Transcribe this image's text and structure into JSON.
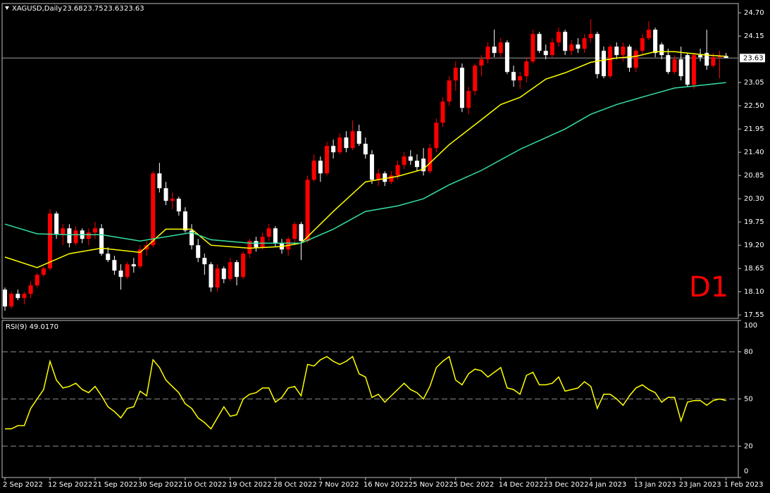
{
  "chart_data": {
    "type": "candlestick",
    "symbol": "XAGUSD,Daily",
    "timeframe_label": "D1",
    "open": [
      18.15,
      17.75,
      18.05,
      17.95,
      18.05,
      18.25,
      18.5,
      18.65,
      19.95,
      19.45,
      19.6,
      19.25,
      19.55,
      19.35,
      19.5,
      19.6,
      19.0,
      18.85,
      18.6,
      18.45,
      18.75,
      18.7,
      19.1,
      19.2,
      20.9,
      20.55,
      20.25,
      20.3,
      20.0,
      19.55,
      19.2,
      18.9,
      18.75,
      18.2,
      18.65,
      18.4,
      18.8,
      18.45,
      19.0,
      19.3,
      19.15,
      19.4,
      19.6,
      19.25,
      19.1,
      19.35,
      19.7,
      19.3,
      20.75,
      21.2,
      20.9,
      21.55,
      21.4,
      21.75,
      21.5,
      21.9,
      21.6,
      21.35,
      20.75,
      20.9,
      20.7,
      20.85,
      21.1,
      21.3,
      21.2,
      21.25,
      20.95,
      21.5,
      22.1,
      22.6,
      23.1,
      23.4,
      22.45,
      22.85,
      23.45,
      23.6,
      23.9,
      23.75,
      24.0,
      23.3,
      23.1,
      23.2,
      23.55,
      24.2,
      23.8,
      23.7,
      24.0,
      24.25,
      23.8,
      23.95,
      23.85,
      24.1,
      24.2,
      23.8,
      23.2,
      23.9,
      23.7,
      23.9,
      23.4,
      23.8,
      24.1,
      24.3,
      23.95,
      23.7,
      23.3,
      23.6,
      23.7,
      23.0,
      23.7,
      23.75,
      23.45,
      23.65,
      23.68
    ],
    "high": [
      18.2,
      18.1,
      18.15,
      18.1,
      18.35,
      18.55,
      18.7,
      20.05,
      20.0,
      19.7,
      19.7,
      19.65,
      19.6,
      19.6,
      19.75,
      19.7,
      19.15,
      18.95,
      18.75,
      18.8,
      18.9,
      19.2,
      19.3,
      20.95,
      21.15,
      20.7,
      20.45,
      20.35,
      20.1,
      19.7,
      19.35,
      19.0,
      18.8,
      18.75,
      18.7,
      18.9,
      18.85,
      19.05,
      19.35,
      19.4,
      19.5,
      19.7,
      19.65,
      19.35,
      19.4,
      19.75,
      19.75,
      20.85,
      21.35,
      21.3,
      21.65,
      21.7,
      21.85,
      21.9,
      22.15,
      22.05,
      21.75,
      21.45,
      21.0,
      20.95,
      20.95,
      21.2,
      21.4,
      21.45,
      21.35,
      21.5,
      21.6,
      22.2,
      22.7,
      23.2,
      23.55,
      23.5,
      22.95,
      23.5,
      23.7,
      24.0,
      24.3,
      24.1,
      24.05,
      23.45,
      23.3,
      23.65,
      24.3,
      24.25,
      23.95,
      24.1,
      24.35,
      24.3,
      24.05,
      24.1,
      24.2,
      24.55,
      24.25,
      23.9,
      23.95,
      24.0,
      24.0,
      23.95,
      23.85,
      24.2,
      24.5,
      24.35,
      24.0,
      23.85,
      23.7,
      23.9,
      23.75,
      23.75,
      23.85,
      24.3,
      23.75,
      23.8,
      23.75
    ],
    "low": [
      17.65,
      17.7,
      17.9,
      17.8,
      17.95,
      18.2,
      18.45,
      18.6,
      19.35,
      19.2,
      19.15,
      19.2,
      19.25,
      19.2,
      19.35,
      18.95,
      18.8,
      18.5,
      18.15,
      18.4,
      18.55,
      18.65,
      18.95,
      19.15,
      20.45,
      20.15,
      20.05,
      19.9,
      19.5,
      19.1,
      18.8,
      18.5,
      18.1,
      18.1,
      18.3,
      18.35,
      18.25,
      18.4,
      18.9,
      19.05,
      19.1,
      19.3,
      19.15,
      19.0,
      18.95,
      19.2,
      18.85,
      19.25,
      20.7,
      20.7,
      20.85,
      21.25,
      21.35,
      21.4,
      21.45,
      21.55,
      21.25,
      20.65,
      20.6,
      20.6,
      20.65,
      20.75,
      21.0,
      21.1,
      20.95,
      20.85,
      20.9,
      21.4,
      22.0,
      22.5,
      22.85,
      22.35,
      22.3,
      22.75,
      23.2,
      23.5,
      23.65,
      23.65,
      23.25,
      22.95,
      22.9,
      23.05,
      23.5,
      23.75,
      23.6,
      23.65,
      23.9,
      23.7,
      23.7,
      23.75,
      23.75,
      24.0,
      23.15,
      23.15,
      23.15,
      23.6,
      23.55,
      23.3,
      23.3,
      23.7,
      24.05,
      23.65,
      23.6,
      23.25,
      23.25,
      23.1,
      22.95,
      22.9,
      23.55,
      23.35,
      23.4,
      23.15,
      23.63
    ],
    "close": [
      17.75,
      18.05,
      17.95,
      18.05,
      18.25,
      18.5,
      18.65,
      19.95,
      19.45,
      19.6,
      19.25,
      19.55,
      19.35,
      19.5,
      19.6,
      19.0,
      18.85,
      18.6,
      18.45,
      18.75,
      18.7,
      19.1,
      19.2,
      20.9,
      20.55,
      20.25,
      20.3,
      20.0,
      19.55,
      19.2,
      18.9,
      18.75,
      18.2,
      18.65,
      18.4,
      18.8,
      18.45,
      19.0,
      19.3,
      19.15,
      19.4,
      19.6,
      19.25,
      19.1,
      19.35,
      19.7,
      19.3,
      20.75,
      21.2,
      20.9,
      21.55,
      21.4,
      21.75,
      21.5,
      21.9,
      21.6,
      21.35,
      20.75,
      20.9,
      20.7,
      20.85,
      21.1,
      21.3,
      21.2,
      21.05,
      20.95,
      21.5,
      22.1,
      22.6,
      23.1,
      23.4,
      22.45,
      22.85,
      23.45,
      23.6,
      23.9,
      23.75,
      24.0,
      23.3,
      23.1,
      23.2,
      23.55,
      24.2,
      23.8,
      23.7,
      24.0,
      24.25,
      23.8,
      23.95,
      23.85,
      24.1,
      24.2,
      23.25,
      23.2,
      23.9,
      23.7,
      23.9,
      23.4,
      23.8,
      24.1,
      24.3,
      23.75,
      23.7,
      23.3,
      23.6,
      23.2,
      23.0,
      23.7,
      23.65,
      23.45,
      23.65,
      23.68,
      23.63
    ],
    "bull_color": "#ff0000",
    "bear_color": "#ffffff",
    "xlim": [
      -0.44,
      113.9
    ],
    "xticks": [
      {
        "value": 0,
        "label": "2 Sep 2022"
      },
      {
        "value": 7,
        "label": "12 Sep 2022"
      },
      {
        "value": 14,
        "label": "21 Sep 2022"
      },
      {
        "value": 21,
        "label": "30 Sep 2022"
      },
      {
        "value": 28,
        "label": "10 Oct 2022"
      },
      {
        "value": 35,
        "label": "19 Oct 2022"
      },
      {
        "value": 42,
        "label": "28 Oct 2022"
      },
      {
        "value": 49,
        "label": "7 Nov 2022"
      },
      {
        "value": 56,
        "label": "16 Nov 2022"
      },
      {
        "value": 63,
        "label": "25 Nov 2022"
      },
      {
        "value": 70,
        "label": "5 Dec 2022"
      },
      {
        "value": 77,
        "label": "14 Dec 2022"
      },
      {
        "value": 84,
        "label": "23 Dec 2022"
      },
      {
        "value": 91,
        "label": "4 Jan 2023"
      },
      {
        "value": 98,
        "label": "13 Jan 2023"
      },
      {
        "value": 105,
        "label": "23 Jan 2023"
      },
      {
        "value": 112,
        "label": "1 Feb 2023"
      }
    ],
    "ylim": [
      17.47,
      24.92
    ],
    "yticks": [
      17.55,
      {
        "value": 18.1,
        "label": "18.10"
      },
      18.65,
      {
        "value": 19.2,
        "label": "19.20"
      },
      19.75,
      {
        "value": 20.3,
        "label": "20.30"
      },
      20.85,
      {
        "value": 21.4,
        "label": "21.40"
      },
      21.95,
      {
        "value": 22.5,
        "label": "22.50"
      },
      23.05,
      24.15,
      {
        "value": 24.7,
        "label": "24.70"
      }
    ],
    "current_price": 23.63,
    "moving_averages": [
      {
        "color": "#ffff00",
        "x": [
          0,
          5,
          10,
          15,
          21,
          25,
          29,
          32,
          38,
          43,
          46,
          51,
          56,
          61,
          65,
          69,
          74,
          77,
          80,
          84,
          87,
          91,
          95,
          98,
          101,
          104,
          109,
          112
        ],
        "values": [
          18.92,
          18.67,
          19.0,
          19.13,
          19.03,
          19.58,
          19.58,
          19.2,
          19.13,
          19.17,
          19.25,
          20.0,
          20.7,
          20.83,
          21.0,
          21.58,
          22.17,
          22.53,
          22.7,
          23.13,
          23.28,
          23.53,
          23.63,
          23.67,
          23.78,
          23.78,
          23.7,
          23.67
        ]
      },
      {
        "color": "#33e0a0",
        "x": [
          0,
          5,
          10,
          15,
          21,
          29,
          32,
          38,
          46,
          51,
          56,
          61,
          65,
          69,
          74,
          80,
          87,
          91,
          95,
          100,
          104,
          109,
          112
        ],
        "values": [
          19.7,
          19.47,
          19.45,
          19.45,
          19.3,
          19.5,
          19.33,
          19.25,
          19.25,
          19.58,
          20.0,
          20.13,
          20.3,
          20.63,
          20.97,
          21.47,
          21.95,
          22.3,
          22.53,
          22.75,
          22.92,
          23.0,
          23.05
        ]
      }
    ],
    "rsi": {
      "type": "line",
      "title": "RSI(9) 49.0170",
      "color": "#ffff00",
      "ylim": [
        0,
        100
      ],
      "yticks": [
        100,
        80,
        50,
        20,
        0
      ],
      "values": [
        31,
        31,
        33,
        33,
        44,
        50,
        56,
        74,
        62,
        57,
        58,
        60,
        56,
        54,
        58,
        52,
        45,
        42,
        38,
        44,
        45,
        55,
        52,
        75,
        70,
        62,
        58,
        54,
        47,
        44,
        38,
        35,
        31,
        38,
        45,
        39,
        40,
        50,
        53,
        54,
        57,
        57,
        48,
        51,
        57,
        58,
        52,
        72,
        71,
        75,
        77,
        74,
        72,
        74,
        77,
        66,
        64,
        51,
        53,
        48,
        52,
        56,
        60,
        56,
        54,
        50,
        58,
        70,
        74,
        77,
        62,
        59,
        66,
        69,
        68,
        64,
        67,
        70,
        57,
        56,
        53,
        65,
        67,
        59,
        59,
        60,
        64,
        55,
        56,
        57,
        61,
        58,
        44,
        53,
        53,
        50,
        46,
        52,
        57,
        59,
        56,
        54,
        48,
        51,
        51,
        36,
        48,
        49,
        49,
        46,
        49,
        50,
        49.017
      ]
    }
  }
}
